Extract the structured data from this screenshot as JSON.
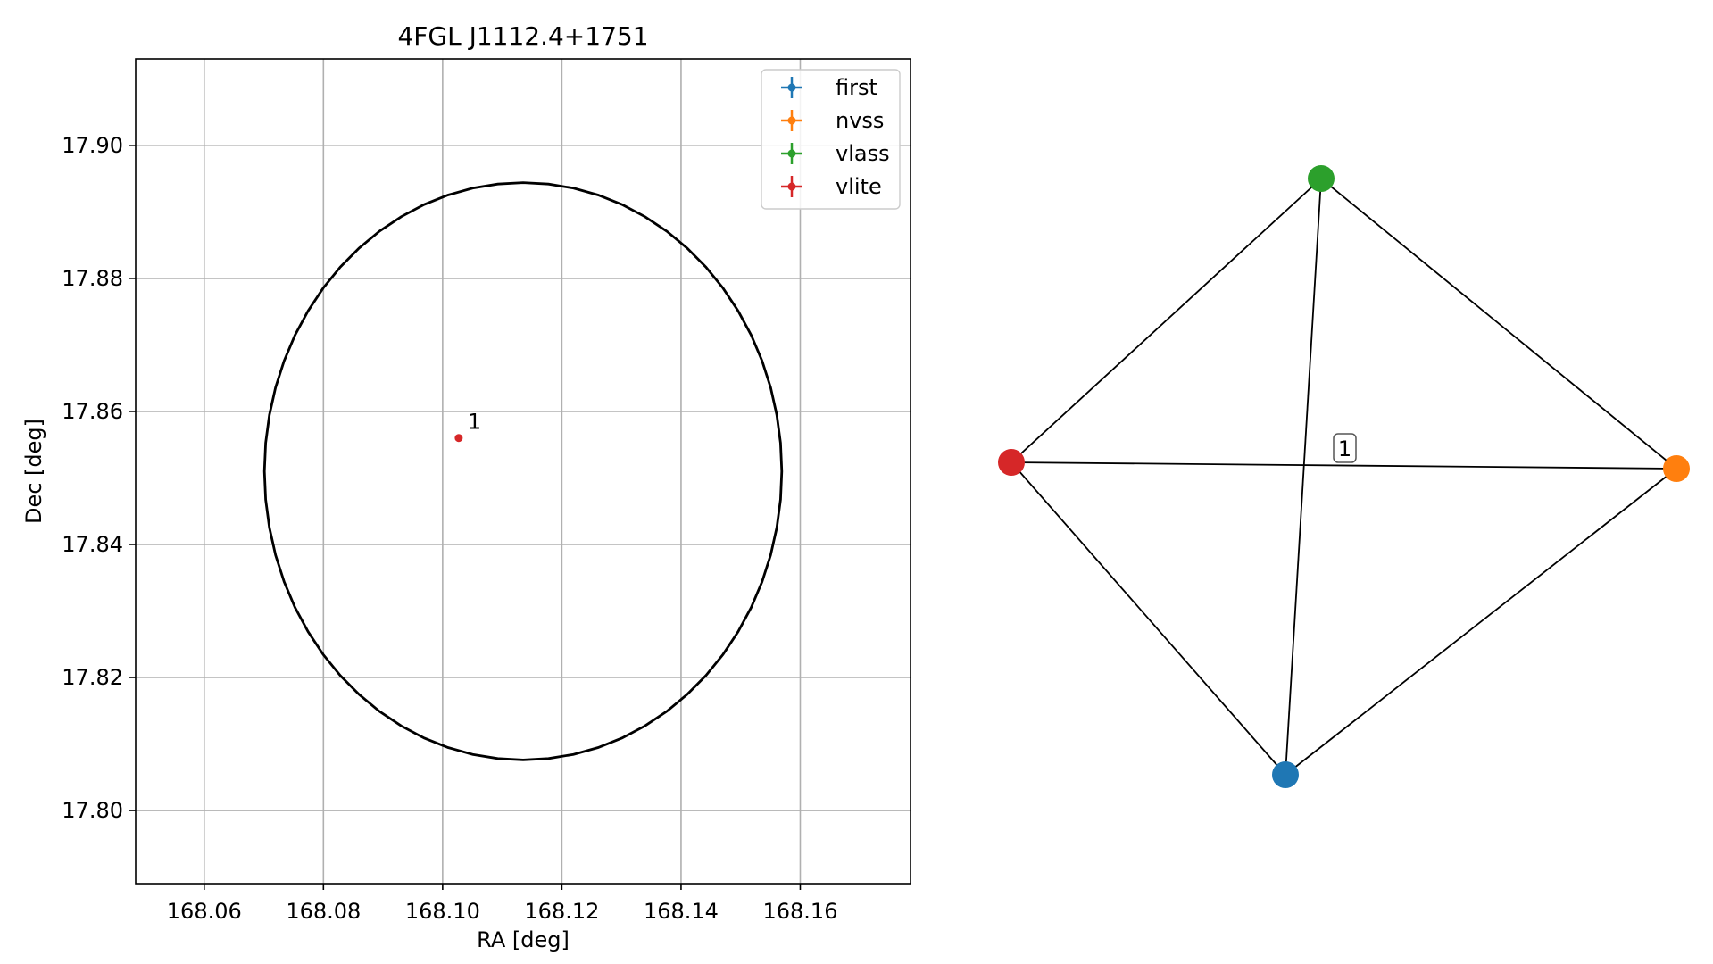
{
  "chart_data": [
    {
      "type": "scatter",
      "title": "4FGL J1112.4+1751",
      "xlabel": "RA [deg]",
      "ylabel": "Dec [deg]",
      "xlim": [
        168.0485,
        168.1785
      ],
      "ylim": [
        17.789,
        17.913
      ],
      "xticks": [
        168.06,
        168.08,
        168.1,
        168.12,
        168.14,
        168.16
      ],
      "xtick_labels": [
        "168.06",
        "168.08",
        "168.10",
        "168.12",
        "168.14",
        "168.16"
      ],
      "yticks": [
        17.8,
        17.82,
        17.84,
        17.86,
        17.88,
        17.9
      ],
      "ytick_labels": [
        "17.80",
        "17.82",
        "17.84",
        "17.86",
        "17.88",
        "17.90"
      ],
      "grid": true,
      "legend_position": "top-right",
      "legend": [
        {
          "label": "first",
          "color": "#1f77b4"
        },
        {
          "label": "nvss",
          "color": "#ff7f0e"
        },
        {
          "label": "vlass",
          "color": "#2ca02c"
        },
        {
          "label": "vlite",
          "color": "#d62728"
        }
      ],
      "circle": {
        "center_ra": 168.1135,
        "center_dec": 17.851,
        "radius": 0.0434
      },
      "points": [
        {
          "ra": 168.1027,
          "dec": 17.856,
          "color": "#d62728",
          "label": "1"
        }
      ]
    },
    {
      "type": "network",
      "nodes": [
        {
          "id": "first",
          "color": "#1f77b4"
        },
        {
          "id": "nvss",
          "color": "#ff7f0e"
        },
        {
          "id": "vlass",
          "color": "#2ca02c"
        },
        {
          "id": "vlite",
          "color": "#d62728"
        }
      ],
      "edges": [
        [
          "vlite",
          "vlass"
        ],
        [
          "vlass",
          "nvss"
        ],
        [
          "vlite",
          "nvss"
        ],
        [
          "vlite",
          "first"
        ],
        [
          "first",
          "nvss"
        ],
        [
          "vlass",
          "first"
        ]
      ],
      "center_label": "1"
    }
  ]
}
